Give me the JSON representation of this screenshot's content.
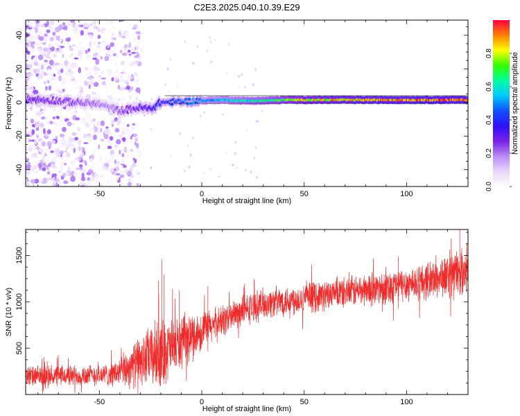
{
  "title": "C2E3.2025.040.10.39.E29",
  "chart_data": [
    {
      "type": "heatmap",
      "xlabel": "Height of straight line (km)",
      "ylabel": "Frequency (Hz)",
      "xlim": [
        -86,
        130
      ],
      "ylim": [
        -50,
        49
      ],
      "xticks": [
        -50,
        0,
        50,
        100
      ],
      "yticks": [
        -40,
        -20,
        0,
        20,
        40
      ],
      "colorbar": {
        "label": "Normalized spectral amplitude",
        "range": [
          0,
          1
        ],
        "ticks": [
          0,
          0.2,
          0.4,
          0.6,
          0.8
        ],
        "colormap": [
          "#ffffff",
          "#e8d6fb",
          "#b98af5",
          "#7a20e8",
          "#2d10ff",
          "#1050ff",
          "#00c8ff",
          "#00ffa0",
          "#30ff00",
          "#ffff00",
          "#ff8000",
          "#ff0040"
        ]
      },
      "ridge": {
        "x": [
          -86,
          -70,
          -60,
          -50,
          -45,
          -40,
          -30,
          -25,
          -20,
          -10,
          0,
          10,
          20,
          30,
          40,
          50,
          60,
          70,
          80,
          88,
          92,
          100,
          110,
          120,
          130
        ],
        "freq": [
          2,
          1,
          0,
          -1,
          -3,
          -5,
          -3,
          -4,
          0,
          0.5,
          1,
          1.5,
          1,
          1,
          1.5,
          1.5,
          1.5,
          1.5,
          1.5,
          1.5,
          1.5,
          1.5,
          1.5,
          1.5,
          1.5
        ],
        "amplitude": [
          0.28,
          0.25,
          0.24,
          0.2,
          0.18,
          0.22,
          0.3,
          0.35,
          0.38,
          0.45,
          0.5,
          0.55,
          0.6,
          0.65,
          0.72,
          0.82,
          0.85,
          0.87,
          0.88,
          0.9,
          0.9,
          0.9,
          0.92,
          0.93,
          0.93
        ]
      },
      "scatter_noise": {
        "x_range": [
          -86,
          -30
        ],
        "freq_range": [
          -50,
          49
        ],
        "amplitude": [
          0.02,
          0.25
        ]
      },
      "grid": false
    },
    {
      "type": "line",
      "xlabel": "Height of straight line (km)",
      "ylabel": "SNR (10 * v/v)",
      "xlim": [
        -86,
        130
      ],
      "ylim": [
        0,
        1780
      ],
      "xticks": [
        -50,
        0,
        50,
        100
      ],
      "yticks": [
        500,
        1000,
        1500
      ],
      "color": "#ee2c2c",
      "series": [
        {
          "x": [
            -86,
            -80,
            -70,
            -60,
            -50,
            -45,
            -40,
            -35,
            -30,
            -25,
            -20,
            -15,
            -10,
            -5,
            0,
            5,
            10,
            15,
            20,
            25,
            30,
            40,
            50,
            60,
            70,
            80,
            90,
            100,
            110,
            120,
            125,
            130
          ],
          "mean": [
            200,
            190,
            200,
            205,
            210,
            215,
            240,
            300,
            360,
            410,
            450,
            500,
            560,
            620,
            680,
            740,
            790,
            850,
            900,
            940,
            980,
            1010,
            1040,
            1070,
            1100,
            1130,
            1160,
            1190,
            1230,
            1280,
            1320,
            1340
          ],
          "spread": [
            110,
            110,
            110,
            110,
            110,
            120,
            150,
            220,
            260,
            320,
            380,
            300,
            280,
            250,
            200,
            180,
            170,
            160,
            160,
            160,
            160,
            160,
            160,
            160,
            160,
            170,
            180,
            180,
            200,
            220,
            230,
            230
          ]
        }
      ],
      "spikes": [
        {
          "x": -19.5,
          "y": 1460
        },
        {
          "x": -18.5,
          "y": 1290
        },
        {
          "x": -21,
          "y": 1080
        },
        {
          "x": -11,
          "y": 1120
        },
        {
          "x": 3,
          "y": 1170
        },
        {
          "x": 96,
          "y": 1490
        },
        {
          "x": 121,
          "y": 1560
        },
        {
          "x": 126,
          "y": 1780
        }
      ],
      "grid": false
    }
  ]
}
